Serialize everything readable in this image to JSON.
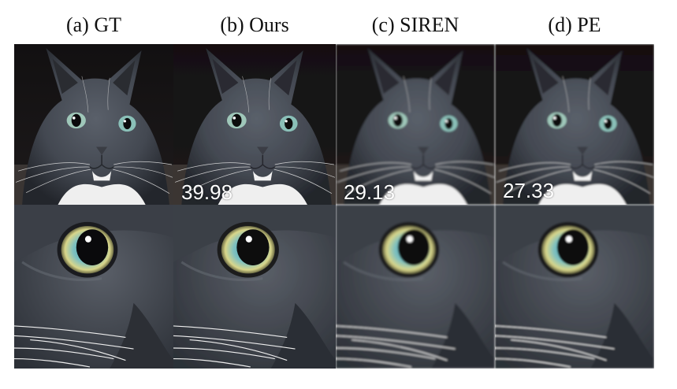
{
  "figure": {
    "columns": [
      {
        "label": "(a) GT",
        "psnr": null,
        "blur": 0
      },
      {
        "label": "(b) Ours",
        "psnr": "39.98",
        "blur": 0.3
      },
      {
        "label": "(c) SIREN",
        "psnr": "29.13",
        "blur": 1.4
      },
      {
        "label": "(d) PE",
        "psnr": "27.33",
        "blur": 1.0
      }
    ],
    "rows": [
      "full-face",
      "eye-closeup"
    ],
    "colors": {
      "fur": "#4a4f58",
      "fur_dark": "#23262c",
      "background": "#0e0c0d",
      "chest": "#eeeeee",
      "iris_outer": "#9fb9a3",
      "iris_inner": "#6fb0b8",
      "pupil": "#0a0a0c"
    }
  }
}
